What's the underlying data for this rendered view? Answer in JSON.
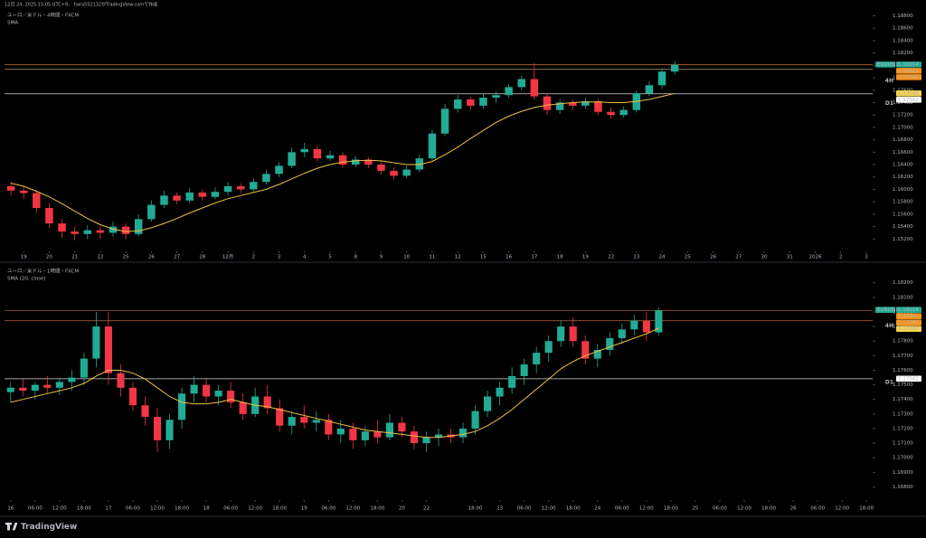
{
  "header": {
    "caption": "12月 24, 2025 15:05 UTC+9、 hara552132がTradingView.comで作成"
  },
  "chart_data": [
    {
      "type": "candlestick",
      "title": "ユーロ／米ドル・4時間・FXCM",
      "subtitle": "SMA",
      "up_color": "#22ab94",
      "down_color": "#f23645",
      "open": [
        1.1605,
        1.1598,
        1.1594,
        1.157,
        1.1545,
        1.1532,
        1.1528,
        1.1534,
        1.153,
        1.154,
        1.1528,
        1.1552,
        1.1575,
        1.159,
        1.1582,
        1.1595,
        1.1588,
        1.1596,
        1.1605,
        1.16,
        1.1612,
        1.1625,
        1.1638,
        1.166,
        1.1665,
        1.165,
        1.1655,
        1.164,
        1.1648,
        1.164,
        1.163,
        1.1622,
        1.1632,
        1.165,
        1.169,
        1.173,
        1.1745,
        1.1735,
        1.1748,
        1.1752,
        1.1765,
        1.1778,
        1.175,
        1.1728,
        1.174,
        1.1735,
        1.1742,
        1.1725,
        1.172,
        1.1728,
        1.1755,
        1.1768,
        1.179
      ],
      "high": [
        1.1612,
        1.1606,
        1.1599,
        1.1578,
        1.1552,
        1.154,
        1.1542,
        1.154,
        1.1548,
        1.1545,
        1.156,
        1.1582,
        1.1598,
        1.1595,
        1.1602,
        1.16,
        1.1603,
        1.1612,
        1.161,
        1.1618,
        1.1632,
        1.1644,
        1.1668,
        1.1675,
        1.167,
        1.1662,
        1.166,
        1.1654,
        1.1652,
        1.1645,
        1.1636,
        1.1638,
        1.1656,
        1.1696,
        1.1738,
        1.1752,
        1.175,
        1.1754,
        1.1758,
        1.177,
        1.1784,
        1.1804,
        1.1756,
        1.1746,
        1.1745,
        1.1748,
        1.1746,
        1.1732,
        1.1734,
        1.176,
        1.1774,
        1.1795,
        1.1807
      ],
      "low": [
        1.159,
        1.1585,
        1.1562,
        1.1538,
        1.1522,
        1.1518,
        1.152,
        1.152,
        1.1524,
        1.152,
        1.1524,
        1.1548,
        1.157,
        1.1576,
        1.1578,
        1.1582,
        1.1584,
        1.159,
        1.1594,
        1.1596,
        1.1608,
        1.162,
        1.1634,
        1.1652,
        1.1645,
        1.1646,
        1.1635,
        1.1636,
        1.1634,
        1.1624,
        1.1616,
        1.1618,
        1.1628,
        1.1646,
        1.1686,
        1.1724,
        1.1728,
        1.173,
        1.174,
        1.1748,
        1.176,
        1.1745,
        1.172,
        1.1722,
        1.1728,
        1.173,
        1.172,
        1.1714,
        1.1716,
        1.1724,
        1.175,
        1.1762,
        1.1785
      ],
      "close": [
        1.1598,
        1.1594,
        1.157,
        1.1545,
        1.1532,
        1.1528,
        1.1534,
        1.153,
        1.154,
        1.1528,
        1.1552,
        1.1575,
        1.159,
        1.1582,
        1.1595,
        1.1588,
        1.1596,
        1.1605,
        1.16,
        1.1612,
        1.1625,
        1.1638,
        1.166,
        1.1665,
        1.165,
        1.1655,
        1.164,
        1.1648,
        1.164,
        1.163,
        1.1622,
        1.1632,
        1.165,
        1.169,
        1.173,
        1.1745,
        1.1735,
        1.1748,
        1.1752,
        1.1765,
        1.1778,
        1.175,
        1.1728,
        1.174,
        1.1735,
        1.1742,
        1.1725,
        1.172,
        1.1728,
        1.1755,
        1.1768,
        1.179,
        1.18011
      ],
      "sma": {
        "color": "#f0c040",
        "values": [
          1.161,
          1.1605,
          1.1597,
          1.1588,
          1.1577,
          1.1565,
          1.1553,
          1.1543,
          1.1536,
          1.1532,
          1.1533,
          1.1538,
          1.1545,
          1.1553,
          1.1562,
          1.157,
          1.1578,
          1.1585,
          1.159,
          1.1595,
          1.16,
          1.1608,
          1.1617,
          1.1626,
          1.1634,
          1.164,
          1.1644,
          1.1646,
          1.1647,
          1.1646,
          1.1643,
          1.164,
          1.164,
          1.1645,
          1.1656,
          1.1668,
          1.1682,
          1.1695,
          1.1708,
          1.1718,
          1.1726,
          1.1732,
          1.1736,
          1.1738,
          1.174,
          1.1741,
          1.1741,
          1.174,
          1.174,
          1.1742,
          1.1745,
          1.175,
          1.17548
        ]
      },
      "xlim": [
        -0.5,
        67.5
      ],
      "xticks": [
        {
          "value": 1,
          "label": "19"
        },
        {
          "value": 3,
          "label": "20"
        },
        {
          "value": 5,
          "label": "21"
        },
        {
          "value": 7,
          "label": "22"
        },
        {
          "value": 9,
          "label": "25"
        },
        {
          "value": 11,
          "label": "26"
        },
        {
          "value": 13,
          "label": "27"
        },
        {
          "value": 15,
          "label": "28"
        },
        {
          "value": 17,
          "label": "12月"
        },
        {
          "value": 19,
          "label": "2"
        },
        {
          "value": 21,
          "label": "3"
        },
        {
          "value": 23,
          "label": "4"
        },
        {
          "value": 25,
          "label": "5"
        },
        {
          "value": 27,
          "label": "8"
        },
        {
          "value": 29,
          "label": "9"
        },
        {
          "value": 31,
          "label": "10"
        },
        {
          "value": 33,
          "label": "11"
        },
        {
          "value": 35,
          "label": "12"
        },
        {
          "value": 37,
          "label": "15"
        },
        {
          "value": 39,
          "label": "16"
        },
        {
          "value": 41,
          "label": "17"
        },
        {
          "value": 43,
          "label": "18"
        },
        {
          "value": 45,
          "label": "19"
        },
        {
          "value": 47,
          "label": "22"
        },
        {
          "value": 49,
          "label": "23"
        },
        {
          "value": 51,
          "label": "24"
        },
        {
          "value": 53,
          "label": "25"
        },
        {
          "value": 55,
          "label": "26"
        },
        {
          "value": 57,
          "label": "27"
        },
        {
          "value": 59,
          "label": "30"
        },
        {
          "value": 61,
          "label": "31"
        },
        {
          "value": 63,
          "label": "2026"
        },
        {
          "value": 65,
          "label": "2"
        },
        {
          "value": 67,
          "label": "3"
        }
      ],
      "ylim": [
        1.15,
        1.1888
      ],
      "yticks": [
        {
          "value": 1.152,
          "label": "1.15200"
        },
        {
          "value": 1.154,
          "label": "1.15400"
        },
        {
          "value": 1.156,
          "label": "1.15600"
        },
        {
          "value": 1.158,
          "label": "1.15800"
        },
        {
          "value": 1.16,
          "label": "1.16000"
        },
        {
          "value": 1.162,
          "label": "1.16200"
        },
        {
          "value": 1.164,
          "label": "1.16400"
        },
        {
          "value": 1.166,
          "label": "1.16600"
        },
        {
          "value": 1.168,
          "label": "1.16800"
        },
        {
          "value": 1.17,
          "label": "1.17000"
        },
        {
          "value": 1.172,
          "label": "1.17200"
        },
        {
          "value": 1.174,
          "label": "1.17400"
        },
        {
          "value": 1.176,
          "label": "1.17600"
        },
        {
          "value": 1.178,
          "label": "1.17800"
        },
        {
          "value": 1.18,
          "label": "1.18000"
        },
        {
          "value": 1.182,
          "label": "1.18200"
        },
        {
          "value": 1.184,
          "label": "1.18400"
        },
        {
          "value": 1.186,
          "label": "1.18600"
        },
        {
          "value": 1.188,
          "label": "1.18800"
        }
      ],
      "price_tags": [
        {
          "value": 1.18014,
          "label": "1.18014",
          "symbol": "EURUSD",
          "color": "#22ab94",
          "text_color": "#ffffff"
        },
        {
          "value": 1.18011,
          "label": "1.18011",
          "color": "#f7931a",
          "text_color": "#ffffff",
          "line_color": "#b0642a"
        },
        {
          "value": 1.1794,
          "label": "1.17940",
          "color": "#f7931a",
          "text_color": "#ffffff",
          "side_label": "4H",
          "line_color": "#8c7a66"
        },
        {
          "value": 1.17548,
          "label": "1.17548",
          "color": "#f5d44a",
          "text_color": "#000000"
        },
        {
          "value": 1.17542,
          "label": "1.17542",
          "color": "#ffffff",
          "text_color": "#000000",
          "side_label": "D1",
          "line_color": "#d8d8d8"
        }
      ]
    },
    {
      "type": "candlestick",
      "title": "ユーロ／米ドル・1時間・FXCM",
      "subtitle": "SMA (20, close)",
      "up_color": "#22ab94",
      "down_color": "#f23645",
      "open": [
        1.1745,
        1.1748,
        1.1746,
        1.175,
        1.1748,
        1.1752,
        1.1755,
        1.1768,
        1.179,
        1.1758,
        1.1748,
        1.1736,
        1.1728,
        1.1712,
        1.1726,
        1.1744,
        1.175,
        1.1742,
        1.1746,
        1.1738,
        1.173,
        1.1742,
        1.1734,
        1.1722,
        1.1728,
        1.1724,
        1.1726,
        1.1716,
        1.172,
        1.1712,
        1.1718,
        1.1714,
        1.1724,
        1.1718,
        1.171,
        1.1714,
        1.1716,
        1.1714,
        1.172,
        1.1732,
        1.1742,
        1.1748,
        1.1756,
        1.1764,
        1.1772,
        1.178,
        1.179,
        1.178,
        1.1768,
        1.1774,
        1.1782,
        1.1788,
        1.1794,
        1.1786
      ],
      "high": [
        1.1752,
        1.1754,
        1.1752,
        1.1756,
        1.1755,
        1.176,
        1.1772,
        1.18,
        1.18,
        1.1764,
        1.1752,
        1.1742,
        1.1734,
        1.173,
        1.1748,
        1.1756,
        1.1755,
        1.175,
        1.1752,
        1.1744,
        1.1748,
        1.175,
        1.174,
        1.1732,
        1.1736,
        1.1732,
        1.173,
        1.1726,
        1.1724,
        1.1722,
        1.1726,
        1.173,
        1.1728,
        1.1722,
        1.1718,
        1.172,
        1.172,
        1.1724,
        1.1736,
        1.1746,
        1.1752,
        1.1762,
        1.1768,
        1.1776,
        1.1784,
        1.1794,
        1.1796,
        1.1784,
        1.1778,
        1.1786,
        1.1792,
        1.1798,
        1.18,
        1.1803
      ],
      "low": [
        1.1738,
        1.1742,
        1.174,
        1.1744,
        1.1743,
        1.1746,
        1.175,
        1.1762,
        1.175,
        1.1742,
        1.1732,
        1.1722,
        1.1704,
        1.1706,
        1.172,
        1.1738,
        1.1738,
        1.1736,
        1.1734,
        1.1726,
        1.1728,
        1.173,
        1.1718,
        1.1716,
        1.172,
        1.1718,
        1.1712,
        1.171,
        1.1706,
        1.1708,
        1.171,
        1.1712,
        1.1714,
        1.1706,
        1.1704,
        1.1708,
        1.171,
        1.171,
        1.1716,
        1.1728,
        1.1736,
        1.1744,
        1.175,
        1.1758,
        1.1766,
        1.1776,
        1.1776,
        1.1764,
        1.1762,
        1.177,
        1.1778,
        1.1784,
        1.178,
        1.1784
      ],
      "close": [
        1.1748,
        1.1746,
        1.175,
        1.1748,
        1.1752,
        1.1755,
        1.1768,
        1.179,
        1.1758,
        1.1748,
        1.1736,
        1.1728,
        1.1712,
        1.1726,
        1.1744,
        1.175,
        1.1742,
        1.1746,
        1.1738,
        1.173,
        1.1742,
        1.1734,
        1.1722,
        1.1728,
        1.1724,
        1.1726,
        1.1716,
        1.172,
        1.1712,
        1.1718,
        1.1714,
        1.1724,
        1.1718,
        1.171,
        1.1714,
        1.1716,
        1.1714,
        1.172,
        1.1732,
        1.1742,
        1.1748,
        1.1756,
        1.1764,
        1.1772,
        1.178,
        1.179,
        1.178,
        1.1768,
        1.1774,
        1.1782,
        1.1788,
        1.1794,
        1.1786,
        1.18011
      ],
      "sma": {
        "color": "#f0c040",
        "values": [
          1.1738,
          1.174,
          1.1742,
          1.1744,
          1.1746,
          1.1748,
          1.1751,
          1.1756,
          1.176,
          1.176,
          1.1758,
          1.1754,
          1.1748,
          1.1742,
          1.1738,
          1.1737,
          1.1737,
          1.1738,
          1.174,
          1.1738,
          1.1736,
          1.1735,
          1.1733,
          1.1731,
          1.1729,
          1.1727,
          1.1725,
          1.1723,
          1.1721,
          1.1719,
          1.1718,
          1.1717,
          1.1716,
          1.1715,
          1.1714,
          1.1714,
          1.1715,
          1.1716,
          1.1718,
          1.1722,
          1.1727,
          1.1733,
          1.174,
          1.1747,
          1.1754,
          1.1761,
          1.1766,
          1.177,
          1.1773,
          1.1776,
          1.1779,
          1.1782,
          1.1785,
          1.17888
        ]
      },
      "xlim": [
        -0.5,
        70.5
      ],
      "xticks": [
        {
          "value": 0,
          "label": "16"
        },
        {
          "value": 2,
          "label": "06:00"
        },
        {
          "value": 4,
          "label": "12:00"
        },
        {
          "value": 6,
          "label": "18:00"
        },
        {
          "value": 8,
          "label": "17"
        },
        {
          "value": 10,
          "label": "06:00"
        },
        {
          "value": 12,
          "label": "12:00"
        },
        {
          "value": 14,
          "label": "18:00"
        },
        {
          "value": 16,
          "label": "18"
        },
        {
          "value": 18,
          "label": "06:00"
        },
        {
          "value": 20,
          "label": "12:00"
        },
        {
          "value": 22,
          "label": "18:00"
        },
        {
          "value": 24,
          "label": "19"
        },
        {
          "value": 26,
          "label": "06:00"
        },
        {
          "value": 28,
          "label": "12:00"
        },
        {
          "value": 30,
          "label": "18:00"
        },
        {
          "value": 32,
          "label": "20"
        },
        {
          "value": 34,
          "label": "22"
        },
        {
          "value": 38,
          "label": "18:00"
        },
        {
          "value": 40,
          "label": "23"
        },
        {
          "value": 42,
          "label": "06:00"
        },
        {
          "value": 44,
          "label": "12:00"
        },
        {
          "value": 46,
          "label": "18:00"
        },
        {
          "value": 48,
          "label": "24"
        },
        {
          "value": 50,
          "label": "06:00"
        },
        {
          "value": 52,
          "label": "12:00"
        },
        {
          "value": 54,
          "label": "18:00"
        },
        {
          "value": 56,
          "label": "25"
        },
        {
          "value": 58,
          "label": "06:00"
        },
        {
          "value": 60,
          "label": "12:00"
        },
        {
          "value": 62,
          "label": "18:00"
        },
        {
          "value": 64,
          "label": "26"
        },
        {
          "value": 66,
          "label": "06:00"
        },
        {
          "value": 68,
          "label": "12:00"
        },
        {
          "value": 70,
          "label": "18:00"
        }
      ],
      "ylim": [
        1.1671,
        1.1831
      ],
      "yticks": [
        {
          "value": 1.168,
          "label": "1.16800"
        },
        {
          "value": 1.169,
          "label": "1.16900"
        },
        {
          "value": 1.17,
          "label": "1.17000"
        },
        {
          "value": 1.171,
          "label": "1.17100"
        },
        {
          "value": 1.172,
          "label": "1.17200"
        },
        {
          "value": 1.173,
          "label": "1.17300"
        },
        {
          "value": 1.174,
          "label": "1.17400"
        },
        {
          "value": 1.175,
          "label": "1.17500"
        },
        {
          "value": 1.176,
          "label": "1.17600"
        },
        {
          "value": 1.177,
          "label": "1.17700"
        },
        {
          "value": 1.178,
          "label": "1.17800"
        },
        {
          "value": 1.179,
          "label": "1.17900"
        },
        {
          "value": 1.18,
          "label": "1.18000"
        },
        {
          "value": 1.181,
          "label": "1.18100"
        },
        {
          "value": 1.182,
          "label": "1.18200"
        }
      ],
      "price_tags": [
        {
          "value": 1.18014,
          "label": "1.18014",
          "symbol": "EURUSD",
          "color": "#22ab94",
          "text_color": "#ffffff"
        },
        {
          "value": 1.18011,
          "label": "1.18011",
          "color": "#f7931a",
          "text_color": "#ffffff",
          "line_color": "#b0642a"
        },
        {
          "value": 1.1794,
          "label": "1.17940",
          "color": "#f7931a",
          "text_color": "#ffffff",
          "side_label": "4H",
          "line_color": "#9a5a3a"
        },
        {
          "value": 1.17888,
          "label": "1.17888",
          "color": "#f5d44a",
          "text_color": "#000000"
        },
        {
          "value": 1.17542,
          "label": "1.17542",
          "color": "#ffffff",
          "text_color": "#000000",
          "side_label": "D1",
          "line_color": "#d8d8d8"
        }
      ]
    }
  ],
  "footer": {
    "brand": "TradingView"
  }
}
